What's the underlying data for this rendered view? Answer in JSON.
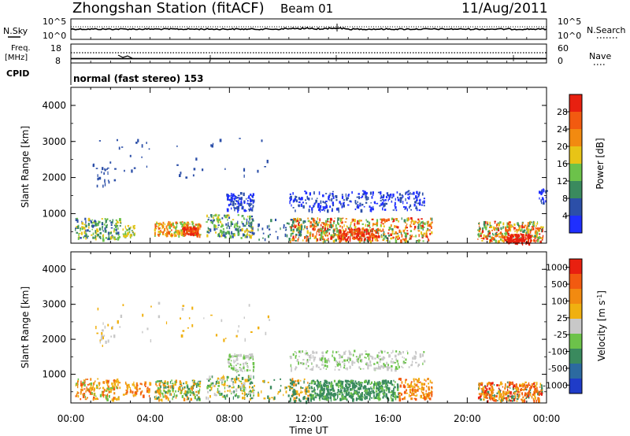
{
  "header": {
    "station": "Zhongshan Station (fitACF)",
    "beam": "Beam 01",
    "date": "11/Aug/2011"
  },
  "left_labels": {
    "nsky": "N.Sky",
    "freq_line1": "Freq.",
    "freq_line2": "[MHz]",
    "cpid": "CPID"
  },
  "right_labels": {
    "nsearch": "N.Search",
    "nave": "Nave"
  },
  "cpid_text": "normal (fast stereo) 153",
  "chart_data": [
    {
      "type": "line",
      "name": "noise",
      "left_axis": {
        "title": "N.Sky",
        "ticks": [
          "10^5",
          "10^0"
        ]
      },
      "right_axis": {
        "title": "N.Search",
        "ticks": [
          "10^5",
          "10^0"
        ]
      },
      "x_ticks": [
        "00:00",
        "04:00",
        "08:00",
        "12:00",
        "16:00",
        "20:00",
        "00:00"
      ]
    },
    {
      "type": "line",
      "name": "frequency-nave",
      "left_axis": {
        "title": "Freq. [MHz]",
        "ticks": [
          "18",
          "8"
        ]
      },
      "right_axis": {
        "title": "Nave",
        "ticks": [
          "60",
          "0"
        ]
      }
    },
    {
      "type": "heatmap",
      "name": "power",
      "ylabel": "Slant Range [km]",
      "ylim": [
        180,
        4500
      ],
      "y_ticks": [
        "1000",
        "2000",
        "3000",
        "4000"
      ],
      "x_ticks": [
        "00:00",
        "04:00",
        "08:00",
        "12:00",
        "16:00",
        "20:00",
        "00:00"
      ],
      "colorbar": {
        "title": "Power [dB]",
        "ticks": [
          "4",
          "8",
          "12",
          "16",
          "20",
          "24",
          "28"
        ],
        "colors": [
          "#1f2fff",
          "#2c4fa8",
          "#3a8a5e",
          "#6cc24a",
          "#e8c416",
          "#f28a10",
          "#f25a10",
          "#e82010"
        ]
      }
    },
    {
      "type": "heatmap",
      "name": "velocity",
      "ylabel": "Slant Range [km]",
      "ylim": [
        180,
        4500
      ],
      "y_ticks": [
        "1000",
        "2000",
        "3000",
        "4000"
      ],
      "x_ticks": [
        "00:00",
        "04:00",
        "08:00",
        "12:00",
        "16:00",
        "20:00",
        "00:00"
      ],
      "xlabel": "Time UT",
      "colorbar": {
        "title": "Velocity [m s",
        "title_sup": "-1",
        "title_end": "]",
        "ticks": [
          "1000",
          "500",
          "100",
          "25",
          "-25",
          "-100",
          "-500",
          "-1000"
        ],
        "colors": [
          "#1f3cc8",
          "#2c6aa0",
          "#3a8a5e",
          "#6cc24a",
          "#c8c8c8",
          "#f0b010",
          "#f28a10",
          "#f25a10",
          "#e82010"
        ]
      }
    }
  ]
}
